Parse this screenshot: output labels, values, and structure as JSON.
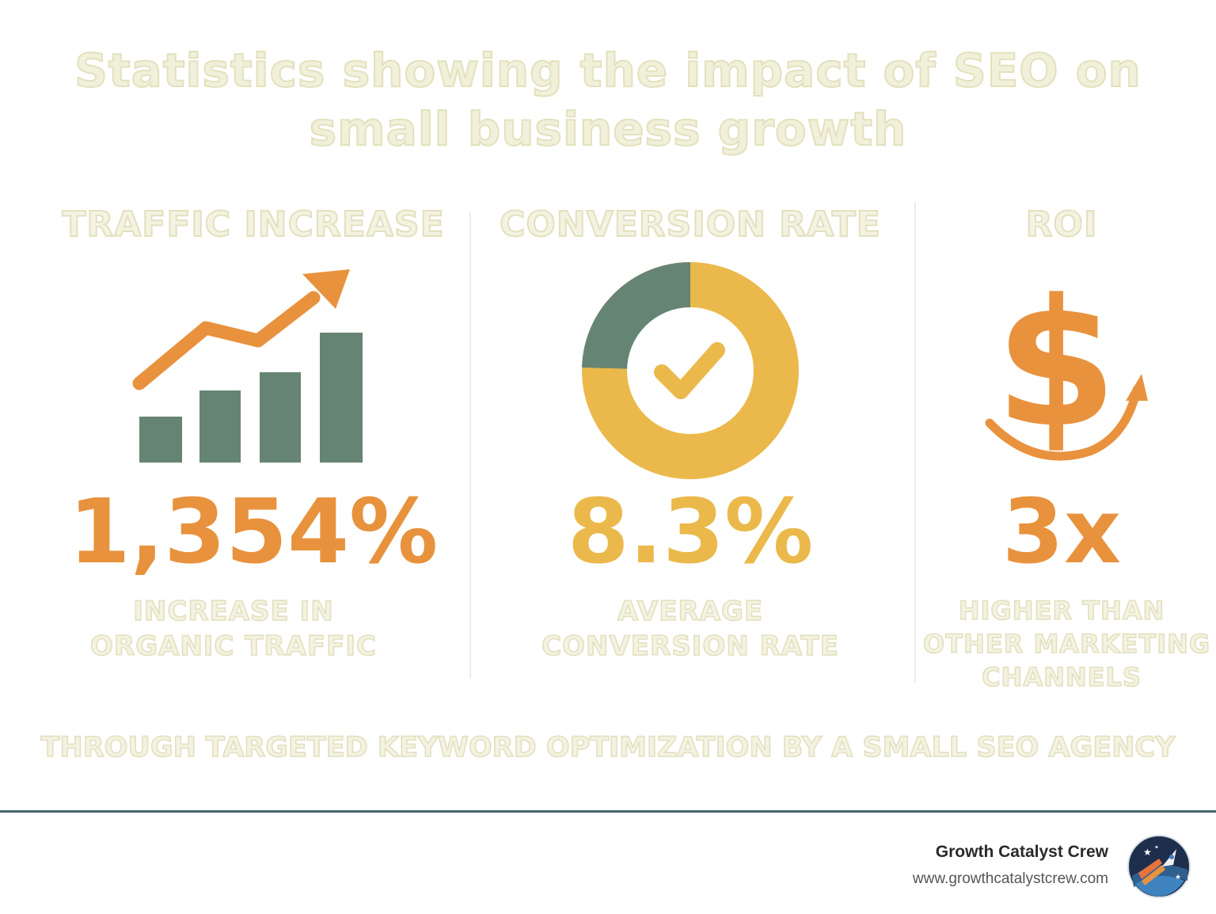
{
  "title": {
    "line1": "Statistics showing the impact of SEO on",
    "line2": "small business growth"
  },
  "columns": [
    {
      "heading": "TRAFFIC INCREASE",
      "value": "1,354%",
      "desc_line1": "INCREASE IN",
      "desc_line2": "ORGANIC TRAFFIC",
      "icon": "bar-chart-trending-up-icon"
    },
    {
      "heading": "CONVERSION RATE",
      "value": "8.3%",
      "desc_line1": "AVERAGE",
      "desc_line2": "CONVERSION RATE",
      "icon": "donut-checkmark-icon"
    },
    {
      "heading": "ROI",
      "value": "3x",
      "desc_line1": "HIGHER THAN",
      "desc_line2": "OTHER MARKETING",
      "desc_line3": "CHANNELS",
      "icon": "dollar-arrow-icon"
    }
  ],
  "footer_note": "THROUGH TARGETED KEYWORD OPTIMIZATION BY A SMALL SEO AGENCY",
  "brand": {
    "name": "Growth Catalyst Crew",
    "url": "www.growthcatalystcrew.com",
    "logo_icon": "rocket-logo-icon"
  },
  "colors": {
    "orange": "#e8923e",
    "yellow": "#ebb94b",
    "green": "#668473",
    "rule": "#46646a"
  }
}
